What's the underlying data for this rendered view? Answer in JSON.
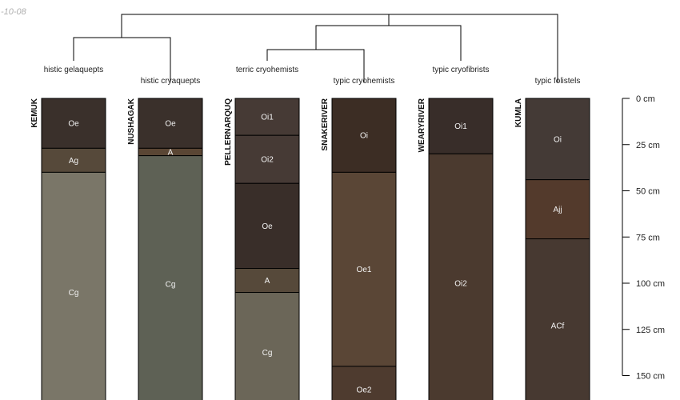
{
  "date_text": "-10-08",
  "profiles": [
    {
      "id": "KEMUK",
      "taxon": "histic gelaquepts",
      "horizons": [
        {
          "name": "Oe",
          "top": 0,
          "bottom": 27,
          "color": "#3a302b"
        },
        {
          "name": "Ag",
          "top": 27,
          "bottom": 40,
          "color": "#56493a"
        },
        {
          "name": "Cg",
          "top": 40,
          "bottom": 170,
          "color": "#7a7668"
        }
      ]
    },
    {
      "id": "NUSHAGAK",
      "taxon": "histic cryaquepts",
      "horizons": [
        {
          "name": "Oe",
          "top": 0,
          "bottom": 27,
          "color": "#3a302b"
        },
        {
          "name": "A",
          "top": 27,
          "bottom": 31,
          "color": "#5a4634"
        },
        {
          "name": "Cg",
          "top": 31,
          "bottom": 170,
          "color": "#5e6155"
        }
      ]
    },
    {
      "id": "PELLERNARQUQ",
      "taxon": "terric cryohemists",
      "horizons": [
        {
          "name": "Oi1",
          "top": 0,
          "bottom": 20,
          "color": "#463a35"
        },
        {
          "name": "Oi2",
          "top": 20,
          "bottom": 46,
          "color": "#463a35"
        },
        {
          "name": "Oe",
          "top": 46,
          "bottom": 92,
          "color": "#392e29"
        },
        {
          "name": "A",
          "top": 92,
          "bottom": 105,
          "color": "#56493a"
        },
        {
          "name": "Cg",
          "top": 105,
          "bottom": 170,
          "color": "#6b6658"
        }
      ]
    },
    {
      "id": "SNAKERIVER",
      "taxon": "typic cryohemists",
      "horizons": [
        {
          "name": "Oi",
          "top": 0,
          "bottom": 40,
          "color": "#3c2d24"
        },
        {
          "name": "Oe1",
          "top": 40,
          "bottom": 145,
          "color": "#5a4636"
        },
        {
          "name": "Oe2",
          "top": 145,
          "bottom": 170,
          "color": "#4e3b2f"
        }
      ]
    },
    {
      "id": "WEARYRIVER",
      "taxon": "typic cryofibrists",
      "horizons": [
        {
          "name": "Oi1",
          "top": 0,
          "bottom": 30,
          "color": "#382d29"
        },
        {
          "name": "Oi2",
          "top": 30,
          "bottom": 170,
          "color": "#4b3a2f"
        }
      ]
    },
    {
      "id": "KUMLA",
      "taxon": "typic folistels",
      "horizons": [
        {
          "name": "Oi",
          "top": 0,
          "bottom": 44,
          "color": "#443a36"
        },
        {
          "name": "Ajj",
          "top": 44,
          "bottom": 76,
          "color": "#533a2c"
        },
        {
          "name": "ACf",
          "top": 76,
          "bottom": 170,
          "color": "#473931"
        }
      ]
    }
  ],
  "depth_axis": {
    "unit": "cm",
    "ticks": [
      0,
      25,
      50,
      75,
      100,
      125,
      150
    ],
    "labels": [
      "0 cm",
      "25 cm",
      "50 cm",
      "75 cm",
      "100 cm",
      "125 cm",
      "150 cm"
    ]
  }
}
